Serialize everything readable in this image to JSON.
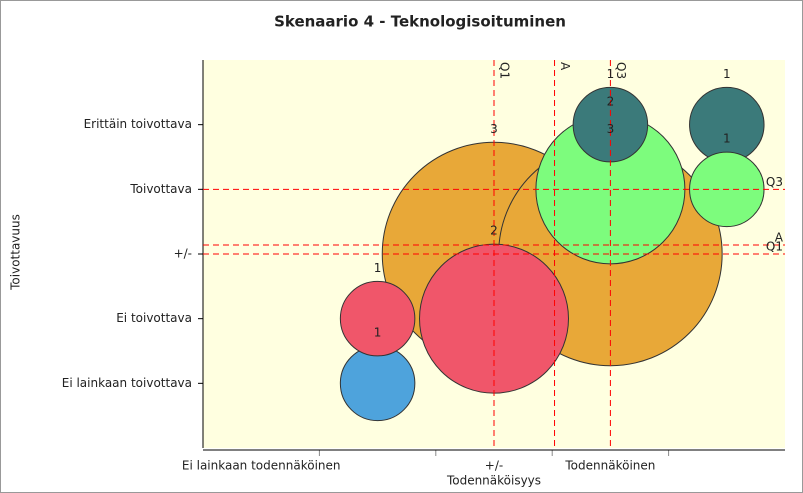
{
  "chart_data": {
    "type": "bubble",
    "title": "Skenaario 4 - Teknologisoituminen",
    "x_label": "Todennäköisyys",
    "y_label": "Toivottavuus",
    "xlim": [
      0.5,
      5.5
    ],
    "ylim": [
      0,
      6
    ],
    "xticks": [
      {
        "value": 1,
        "label": "Ei lainkaan todennäköinen"
      },
      {
        "value": 3,
        "label": "+/-"
      },
      {
        "value": 4,
        "label": "Todennäköinen"
      }
    ],
    "yticks": [
      {
        "value": 1,
        "label": "Ei lainkaan toivottava"
      },
      {
        "value": 2,
        "label": "Ei toivottava"
      },
      {
        "value": 3,
        "label": "+/-"
      },
      {
        "value": 4,
        "label": "Toivottava"
      },
      {
        "value": 5,
        "label": "Erittäin toivottava"
      }
    ],
    "points": [
      {
        "x": 3,
        "y": 3,
        "size": 3,
        "color": "#e8a838"
      },
      {
        "x": 4,
        "y": 3,
        "size": 3,
        "color": "#e8a838"
      },
      {
        "x": 4,
        "y": 4,
        "size": 2,
        "color": "#7dfc7d"
      },
      {
        "x": 4,
        "y": 5,
        "size": 1,
        "color": "#3b7a7a"
      },
      {
        "x": 3,
        "y": 2,
        "size": 2,
        "color": "#f0566a"
      },
      {
        "x": 2,
        "y": 1,
        "size": 1,
        "color": "#4ea3dc"
      },
      {
        "x": 2,
        "y": 2,
        "size": 1,
        "color": "#f0566a"
      },
      {
        "x": 5,
        "y": 5,
        "size": 1,
        "color": "#3b7a7a"
      },
      {
        "x": 5,
        "y": 4,
        "size": 1,
        "color": "#7dfc7d"
      }
    ],
    "x_lines": [
      {
        "label": "Q1",
        "value": 3
      },
      {
        "label": "A",
        "value": 3.52
      },
      {
        "label": "Q3",
        "value": 4
      }
    ],
    "y_lines": [
      {
        "label": "Q3",
        "value": 4
      },
      {
        "label": "A",
        "value": 3.14
      },
      {
        "label": "Q1",
        "value": 3
      }
    ],
    "line_color": "#ff0000"
  }
}
